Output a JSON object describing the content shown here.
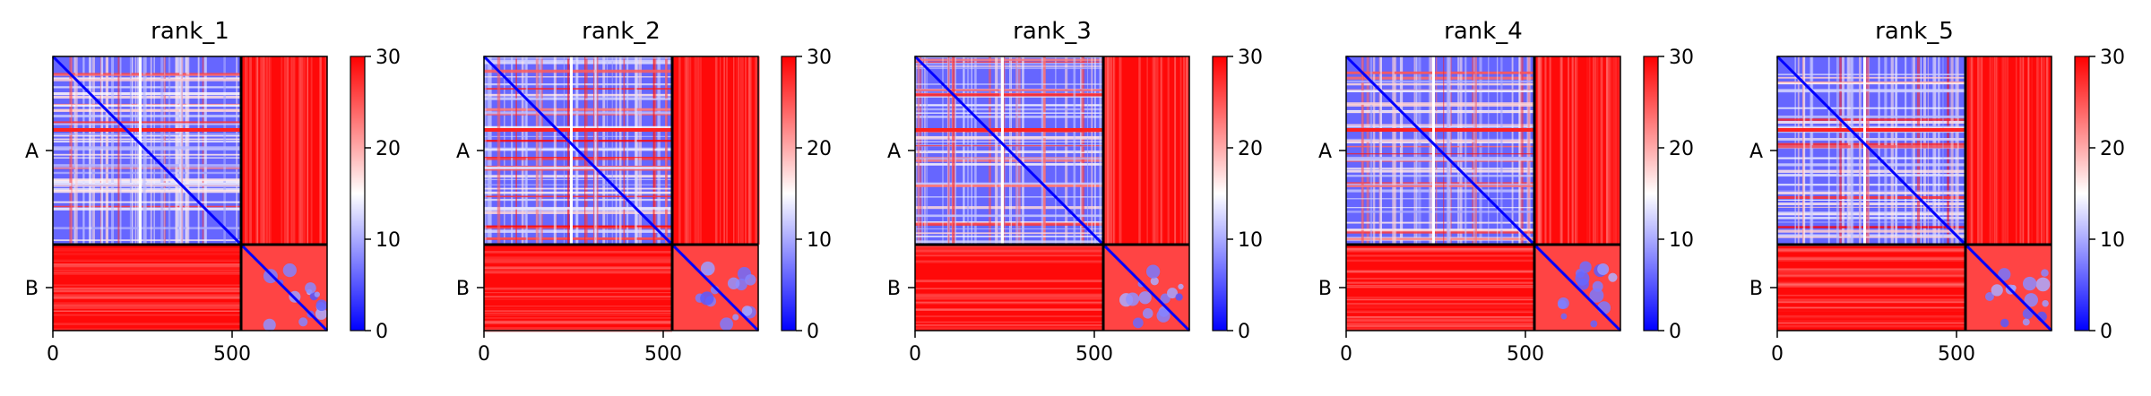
{
  "figure": {
    "type": "heatmap",
    "panels": [
      {
        "title": "rank_1"
      },
      {
        "title": "rank_2"
      },
      {
        "title": "rank_3"
      },
      {
        "title": "rank_4"
      },
      {
        "title": "rank_5"
      }
    ]
  },
  "chart_data": {
    "type": "heatmap",
    "titles": [
      "rank_1",
      "rank_2",
      "rank_3",
      "rank_4",
      "rank_5"
    ],
    "xticks": [
      "0",
      "500"
    ],
    "ytick_labels": [
      "A",
      "B"
    ],
    "chain_boundary": 525,
    "total_length": 765,
    "colorbar": {
      "ticks": [
        "0",
        "10",
        "20",
        "30"
      ],
      "range": [
        0,
        30
      ],
      "colormap": "bwr",
      "low_color": "#0000ff",
      "mid_color": "#ffffff",
      "high_color": "#ff0000"
    }
  }
}
